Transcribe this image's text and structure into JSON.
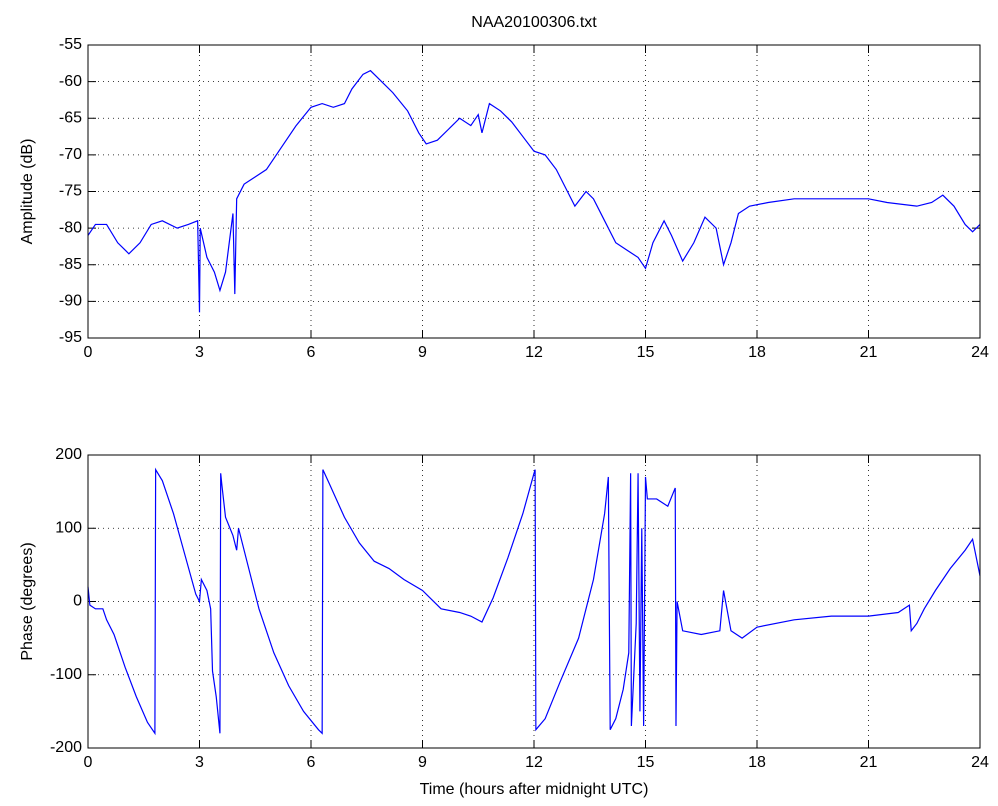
{
  "chart_data": [
    {
      "type": "line",
      "title": "NAA20100306.txt",
      "y_label": "Amplitude (dB)",
      "xlim": [
        0,
        24
      ],
      "xticks": [
        0,
        3,
        6,
        9,
        12,
        15,
        18,
        21,
        24
      ],
      "ylim": [
        -95,
        -55
      ],
      "yticks": [
        -95,
        -90,
        -85,
        -80,
        -75,
        -70,
        -65,
        -60,
        -55
      ],
      "grid": true,
      "series": [
        {
          "color": "#0000ff",
          "x": [
            0,
            0.2,
            0.5,
            0.8,
            1.1,
            1.4,
            1.7,
            2.0,
            2.4,
            2.7,
            2.95,
            3.0,
            3.02,
            3.2,
            3.4,
            3.55,
            3.7,
            3.85,
            3.9,
            3.95,
            4.0,
            4.2,
            4.5,
            4.8,
            5.2,
            5.6,
            6.0,
            6.3,
            6.6,
            6.9,
            7.1,
            7.4,
            7.6,
            7.8,
            8.2,
            8.6,
            8.9,
            9.1,
            9.4,
            9.7,
            10.0,
            10.3,
            10.5,
            10.6,
            10.8,
            11.1,
            11.4,
            11.7,
            12.0,
            12.3,
            12.6,
            12.9,
            13.1,
            13.4,
            13.6,
            13.9,
            14.2,
            14.5,
            14.8,
            15.0,
            15.2,
            15.5,
            15.7,
            16.0,
            16.3,
            16.6,
            16.9,
            17.1,
            17.3,
            17.5,
            17.8,
            18.3,
            19,
            20,
            21,
            21.5,
            22.3,
            22.7,
            23.0,
            23.3,
            23.6,
            23.8,
            24
          ],
          "values": [
            -81,
            -79.5,
            -79.5,
            -82,
            -83.5,
            -82,
            -79.5,
            -79,
            -80,
            -79.5,
            -79,
            -91.5,
            -80,
            -84,
            -86,
            -88.5,
            -86,
            -80,
            -78,
            -89,
            -76,
            -74,
            -73,
            -72,
            -69,
            -66,
            -63.5,
            -63,
            -63.5,
            -63,
            -61,
            -59,
            -58.5,
            -59.5,
            -61.5,
            -64,
            -67,
            -68.5,
            -68,
            -66.5,
            -65,
            -66,
            -64.5,
            -67,
            -63,
            -64,
            -65.5,
            -67.5,
            -69.5,
            -70,
            -72,
            -75,
            -77,
            -75,
            -76,
            -79,
            -82,
            -83,
            -84,
            -85.5,
            -82,
            -79,
            -81,
            -84.5,
            -82,
            -78.5,
            -80,
            -85,
            -82,
            -78,
            -77,
            -76.5,
            -76,
            -76,
            -76,
            -76.5,
            -77,
            -76.5,
            -75.5,
            -77,
            -79.5,
            -80.5,
            -79.5
          ]
        }
      ]
    },
    {
      "type": "line",
      "y_label": "Phase (degrees)",
      "x_label": "Time (hours after midnight UTC)",
      "xlim": [
        0,
        24
      ],
      "xticks": [
        0,
        3,
        6,
        9,
        12,
        15,
        18,
        21,
        24
      ],
      "ylim": [
        -200,
        200
      ],
      "yticks": [
        -200,
        -100,
        0,
        100,
        200
      ],
      "grid": true,
      "series": [
        {
          "color": "#0000ff",
          "x": [
            0,
            0.05,
            0.2,
            0.4,
            0.5,
            0.7,
            1.0,
            1.3,
            1.6,
            1.8,
            1.82,
            2.0,
            2.3,
            2.6,
            2.9,
            3.0,
            3.05,
            3.2,
            3.3,
            3.35,
            3.45,
            3.55,
            3.57,
            3.6,
            3.7,
            3.9,
            4.0,
            4.05,
            4.3,
            4.6,
            5.0,
            5.4,
            5.8,
            6.2,
            6.3,
            6.32,
            6.5,
            6.9,
            7.3,
            7.7,
            8.1,
            8.5,
            9.0,
            9.5,
            10.0,
            10.3,
            10.6,
            10.9,
            11.3,
            11.7,
            12.0,
            12.03,
            12.05,
            12.3,
            12.7,
            13.2,
            13.6,
            13.9,
            14.0,
            14.05,
            14.2,
            14.4,
            14.55,
            14.6,
            14.62,
            14.75,
            14.8,
            14.85,
            14.9,
            14.95,
            15.0,
            15.05,
            15.3,
            15.6,
            15.8,
            15.82,
            15.85,
            16.0,
            16.5,
            17.0,
            17.1,
            17.3,
            17.6,
            18.0,
            19.0,
            20,
            21,
            21.8,
            22.1,
            22.15,
            22.3,
            22.5,
            22.8,
            23.2,
            23.6,
            23.8,
            24
          ],
          "values": [
            20,
            -5,
            -10,
            -10,
            -25,
            -45,
            -90,
            -130,
            -165,
            -180,
            180,
            165,
            120,
            65,
            10,
            0,
            30,
            15,
            -10,
            -95,
            -130,
            -180,
            175,
            160,
            115,
            90,
            70,
            100,
            50,
            -10,
            -70,
            -115,
            -150,
            -175,
            -180,
            180,
            160,
            115,
            80,
            55,
            45,
            30,
            15,
            -10,
            -15,
            -20,
            -28,
            5,
            60,
            120,
            175,
            180,
            -175,
            -160,
            -110,
            -50,
            30,
            120,
            170,
            -175,
            -160,
            -120,
            -70,
            175,
            -170,
            -30,
            175,
            -150,
            100,
            -170,
            170,
            140,
            140,
            130,
            155,
            -170,
            0,
            -40,
            -45,
            -40,
            15,
            -40,
            -50,
            -35,
            -25,
            -20,
            -20,
            -15,
            -5,
            -40,
            -30,
            -10,
            15,
            45,
            70,
            85,
            35
          ]
        }
      ]
    }
  ]
}
